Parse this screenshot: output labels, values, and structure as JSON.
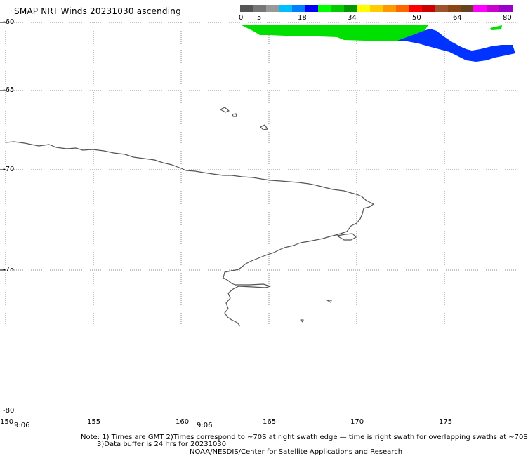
{
  "title": "SMAP NRT Winds 20231030 ascending",
  "colorbar": {
    "labels": [
      "0",
      "5",
      "18",
      "34",
      "50",
      "64",
      "80"
    ],
    "colors": [
      "#555555",
      "#777777",
      "#999999",
      "#00bfff",
      "#0080ff",
      "#0000ff",
      "#00ff00",
      "#00cc00",
      "#009900",
      "#ffff00",
      "#ffcc00",
      "#ff9900",
      "#ff6600",
      "#ff0000",
      "#cc0000",
      "#a0522d",
      "#8b4513",
      "#654321",
      "#ff00ff",
      "#cc00cc",
      "#9900cc"
    ]
  },
  "map": {
    "lat_labels": [
      "-60",
      "-65",
      "-70",
      "-75",
      "-80"
    ],
    "lon_labels": [
      "150",
      "155",
      "160",
      "165",
      "170",
      "175"
    ],
    "time_labels": [
      "9:06",
      "9:06"
    ],
    "colors": {
      "land": "#555555",
      "grid": "#888888",
      "wind_green": "#00e000",
      "wind_blue": "#0033ff"
    }
  },
  "note_line1": "Note: 1) Times are GMT 2)Times correspond to ~70S at right swath edge — time is right swath for overlapping swaths at ~70S",
  "note_line2": "3)Data buffer is 24 hrs for 20231030",
  "credit": "NOAA/NESDIS/Center for Satellite Applications and Research"
}
